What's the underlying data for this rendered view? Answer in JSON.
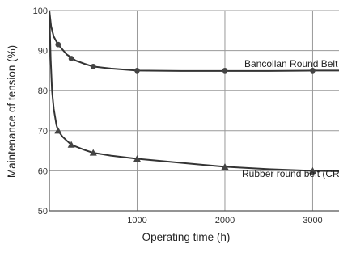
{
  "chart_data": {
    "type": "line",
    "title": "",
    "xlabel": "Operating time (h)",
    "ylabel": "Maintenance of tension (%)",
    "xlim": [
      0,
      3300
    ],
    "ylim": [
      50,
      100
    ],
    "x_ticks": [
      1000,
      2000,
      3000
    ],
    "y_ticks": [
      50,
      60,
      70,
      80,
      90,
      100
    ],
    "grid": true,
    "series": [
      {
        "name": "Bancollan Round Belt",
        "marker": "circle",
        "curve": [
          [
            0,
            100
          ],
          [
            20,
            96
          ],
          [
            50,
            93.5
          ],
          [
            100,
            91.5
          ],
          [
            200,
            89
          ],
          [
            300,
            87.5
          ],
          [
            400,
            86.7
          ],
          [
            500,
            86
          ],
          [
            700,
            85.5
          ],
          [
            1000,
            85
          ],
          [
            1500,
            84.9
          ],
          [
            2000,
            84.9
          ],
          [
            2500,
            84.9
          ],
          [
            3000,
            85
          ],
          [
            3300,
            85
          ]
        ],
        "markers": [
          [
            100,
            91.5
          ],
          [
            250,
            88
          ],
          [
            500,
            86
          ],
          [
            1000,
            85
          ],
          [
            2000,
            85
          ],
          [
            3000,
            85
          ]
        ]
      },
      {
        "name": "Rubber round belt (CR)",
        "marker": "triangle",
        "curve": [
          [
            0,
            100
          ],
          [
            15,
            88
          ],
          [
            30,
            80
          ],
          [
            50,
            75.5
          ],
          [
            80,
            71.5
          ],
          [
            100,
            70
          ],
          [
            150,
            68.5
          ],
          [
            250,
            66.5
          ],
          [
            400,
            65.2
          ],
          [
            500,
            64.5
          ],
          [
            700,
            63.8
          ],
          [
            1000,
            63
          ],
          [
            1500,
            62
          ],
          [
            2000,
            61
          ],
          [
            2500,
            60.4
          ],
          [
            3000,
            60
          ],
          [
            3300,
            59.9
          ]
        ],
        "markers": [
          [
            100,
            70
          ],
          [
            250,
            66.5
          ],
          [
            500,
            64.5
          ],
          [
            1000,
            63
          ],
          [
            2000,
            61
          ],
          [
            3000,
            60
          ]
        ]
      }
    ]
  }
}
